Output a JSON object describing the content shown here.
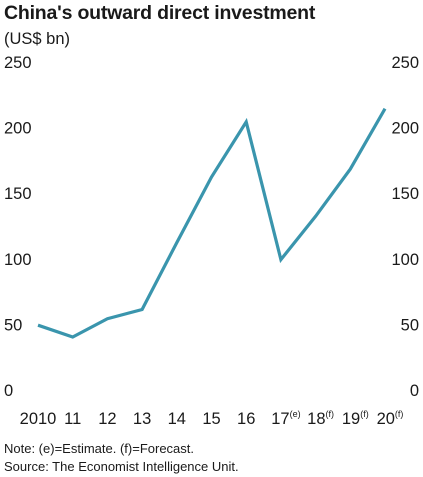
{
  "chart_data": {
    "type": "line",
    "title": "China's outward direct investment",
    "subtitle": "(US$ bn)",
    "xlabel": "",
    "ylabel": "",
    "categories": [
      "2010",
      "11",
      "12",
      "13",
      "14",
      "15",
      "16",
      "17",
      "18",
      "19",
      "20"
    ],
    "category_marks": [
      "",
      "",
      "",
      "",
      "",
      "",
      "",
      "(e)",
      "(f)",
      "(f)",
      "(f)"
    ],
    "series": [
      {
        "values": [
          57,
          48,
          62,
          69,
          120,
          170,
          212,
          107,
          140,
          176,
          222
        ]
      }
    ],
    "ylim": [
      0,
      250
    ],
    "yticks": [
      0,
      50,
      100,
      150,
      200,
      250
    ],
    "ytick_labels": [
      "0",
      "50",
      "100",
      "150",
      "200",
      "250"
    ],
    "grid": false,
    "y_axis_both_sides": true,
    "line_color": "#3a95ad",
    "footnote": "Note: (e)=Estimate. (f)=Forecast.",
    "source": "Source: The Economist Intelligence Unit."
  }
}
